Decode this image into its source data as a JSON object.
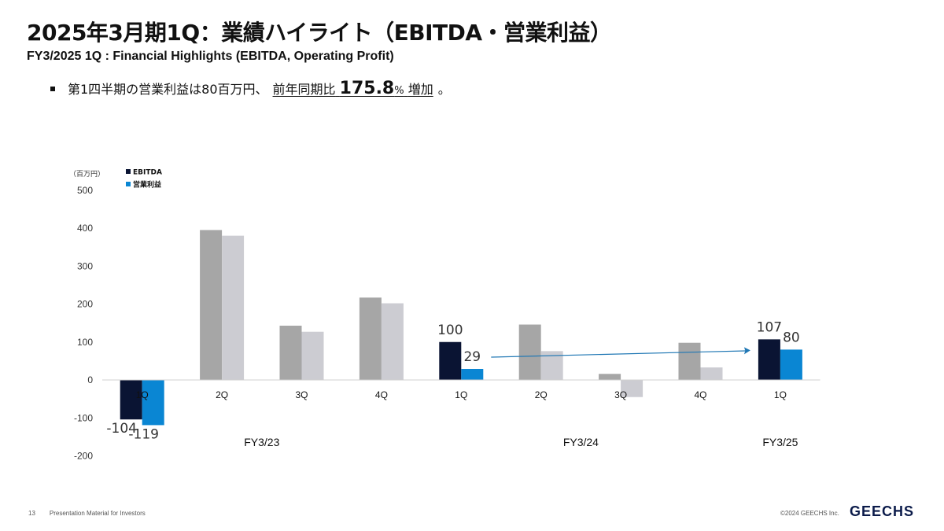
{
  "header": {
    "title": "2025年3月期1Q：業績ハイライト（EBITDA・営業利益）",
    "subtitle": "FY3/2025 1Q : Financial Highlights (EBITDA, Operating Profit)"
  },
  "bullet": {
    "text_before": "第1四半期の営業利益は80百万円、",
    "underlined_prefix": "前年同期比",
    "growth_value": "175.8",
    "growth_unit": "%",
    "underlined_suffix": "増加",
    "end_mark": "。"
  },
  "chart_data": {
    "type": "bar",
    "unit_label": "（百万円）",
    "ylim": [
      -200,
      500
    ],
    "yticks": [
      500,
      400,
      300,
      200,
      100,
      0,
      -100,
      -200
    ],
    "categories": [
      "1Q",
      "2Q",
      "3Q",
      "4Q",
      "1Q",
      "2Q",
      "3Q",
      "4Q",
      "1Q"
    ],
    "groups": [
      {
        "label": "FY3/23",
        "categories": [
          0,
          1,
          2,
          3
        ]
      },
      {
        "label": "FY3/24",
        "categories": [
          4,
          5,
          6,
          7
        ]
      },
      {
        "label": "FY3/25",
        "categories": [
          8
        ]
      }
    ],
    "series": [
      {
        "name": "EBITDA",
        "color": "#0a1433",
        "muted_color": "#a6a6a6",
        "values": [
          -104,
          395,
          143,
          217,
          100,
          146,
          16,
          98,
          107
        ]
      },
      {
        "name": "営業利益",
        "color": "#0a86d3",
        "muted_color": "#ccccd2",
        "values": [
          -119,
          380,
          127,
          202,
          29,
          76,
          -45,
          33,
          80
        ]
      }
    ],
    "highlighted_categories": [
      0,
      4,
      8
    ],
    "data_labels": [
      {
        "category": 0,
        "series": 0,
        "text": "-104"
      },
      {
        "category": 0,
        "series": 1,
        "text": "-119"
      },
      {
        "category": 4,
        "series": 0,
        "text": "100"
      },
      {
        "category": 4,
        "series": 1,
        "text": "29"
      },
      {
        "category": 8,
        "series": 0,
        "text": "107"
      },
      {
        "category": 8,
        "series": 1,
        "text": "80"
      }
    ],
    "trend_arrow": {
      "from": {
        "category": 4,
        "value": 29
      },
      "to": {
        "category": 8,
        "value": 80
      },
      "color": "#1f77b4"
    },
    "legend_position": "top-left",
    "grid": false
  },
  "footer": {
    "page_number": "13",
    "label": "Presentation Material for  Investors",
    "copyright": "©2024 GEECHS Inc.",
    "logo_text": "GEECHS"
  }
}
